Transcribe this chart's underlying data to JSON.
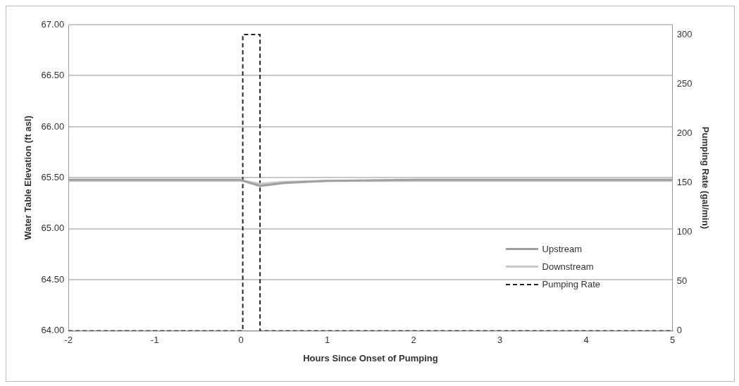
{
  "chart_data": {
    "type": "line",
    "xlabel": "Hours Since Onset of Pumping",
    "ylabel": "Water Table Elevation (ft asl)",
    "y2label": "Pumping Rate (gal/min)",
    "xlim": [
      -2,
      5
    ],
    "xticks": [
      -2,
      -1,
      0,
      1,
      2,
      3,
      4,
      5
    ],
    "ylim": [
      64,
      67
    ],
    "yticks": [
      {
        "value": 64,
        "label": "64.00"
      },
      {
        "value": 64.5,
        "label": "64.50"
      },
      {
        "value": 65,
        "label": "65.00"
      },
      {
        "value": 65.5,
        "label": "65.50"
      },
      {
        "value": 66,
        "label": "66.00"
      },
      {
        "value": 66.5,
        "label": "66.50"
      },
      {
        "value": 67,
        "label": "67.00"
      }
    ],
    "y2lim": [
      0,
      310
    ],
    "y2ticks": [
      0,
      50,
      100,
      150,
      200,
      250,
      300
    ],
    "grid": "y",
    "legend": "bottom right",
    "marker": "none",
    "series": [
      {
        "name": "Upstream",
        "color": "#a0a0a0",
        "x": [
          -2,
          -1,
          0,
          0.1,
          0.22,
          0.5,
          1,
          2,
          3,
          4,
          5
        ],
        "values": [
          65.48,
          65.48,
          65.48,
          65.45,
          65.42,
          65.45,
          65.47,
          65.48,
          65.48,
          65.48,
          65.48
        ]
      },
      {
        "name": "Downstream",
        "color": "#c8c8c8",
        "x": [
          -2,
          -1,
          0,
          0.1,
          0.22,
          0.5,
          1,
          2,
          3,
          4,
          5
        ],
        "values": [
          65.47,
          65.47,
          65.47,
          65.46,
          65.44,
          65.46,
          65.47,
          65.47,
          65.47,
          65.47,
          65.47
        ]
      },
      {
        "name": "Pumping Rate",
        "color": "#222222",
        "axis": "y2",
        "line_style": "dashed",
        "x": [
          -2,
          0.02,
          0.02,
          0.22,
          0.22,
          5
        ],
        "values": [
          0,
          0,
          300,
          300,
          0,
          0
        ]
      }
    ]
  }
}
